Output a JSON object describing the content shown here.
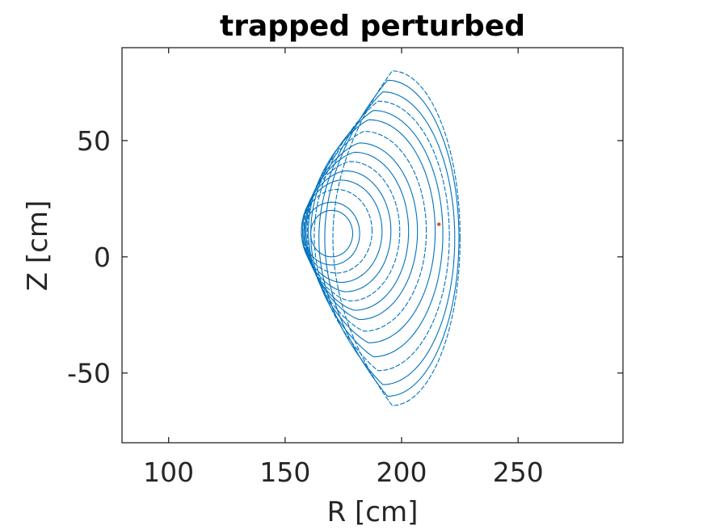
{
  "chart_data": {
    "type": "line",
    "title": "trapped perturbed",
    "xlabel": "R [cm]",
    "ylabel": "Z [cm]",
    "xlim": [
      80,
      295
    ],
    "ylim": [
      -80,
      90
    ],
    "xticks": [
      100,
      150,
      200,
      250
    ],
    "yticks": [
      -50,
      0,
      50
    ],
    "xtick_labels": [
      "100",
      "150",
      "200",
      "250"
    ],
    "ytick_labels": [
      "-50",
      "0",
      "50"
    ],
    "grid": false,
    "legend": "none",
    "box": true,
    "series": [
      {
        "color": "#0072bd",
        "description_points": "orbit surfaces (nested crescent curves)",
        "curves": [
          {
            "center": [
              170,
              10
            ],
            "r_half_width": 9,
            "z_half_height": 10,
            "bulge": 0
          },
          {
            "center": [
              170,
              10
            ],
            "r_half_width": 12,
            "z_half_height": 13.5,
            "bulge": 0
          },
          {
            "center": [
              172,
              11
            ],
            "r_half_width": 15,
            "z_half_height": 18,
            "bulge": 1
          },
          {
            "center": [
              174,
              11
            ],
            "r_half_width": 17,
            "z_half_height": 22,
            "bulge": 2
          },
          {
            "center": [
              176,
              11
            ],
            "r_half_width": 18.5,
            "z_half_height": 26,
            "bulge": 3
          },
          {
            "center": [
              178,
              11
            ],
            "r_half_width": 20,
            "z_half_height": 30,
            "bulge": 4
          },
          {
            "center": [
              180,
              11
            ],
            "r_half_width": 21.5,
            "z_half_height": 34,
            "bulge": 5
          },
          {
            "center": [
              182,
              11
            ],
            "r_half_width": 23,
            "z_half_height": 38,
            "bulge": 6
          },
          {
            "center": [
              184,
              11
            ],
            "r_half_width": 24.5,
            "z_half_height": 43,
            "bulge": 7
          },
          {
            "center": [
              186,
              11
            ],
            "r_half_width": 26,
            "z_half_height": 48,
            "bulge": 8
          },
          {
            "center": [
              188,
              10
            ],
            "r_half_width": 27,
            "z_half_height": 53,
            "bulge": 9
          },
          {
            "center": [
              190,
              9
            ],
            "r_half_width": 27.5,
            "z_half_height": 58,
            "bulge": 10
          },
          {
            "center": [
              192,
              8
            ],
            "r_half_width": 27.5,
            "z_half_height": 63,
            "bulge": 11
          },
          {
            "center": [
              194,
              8
            ],
            "r_half_width": 27,
            "z_half_height": 68,
            "bulge": 12
          },
          {
            "center": [
              196,
              8
            ],
            "r_half_width": 25.5,
            "z_half_height": 72,
            "bulge": 12
          }
        ]
      },
      {
        "color": "#d95319",
        "points": [
          [
            216,
            14
          ]
        ]
      }
    ]
  }
}
